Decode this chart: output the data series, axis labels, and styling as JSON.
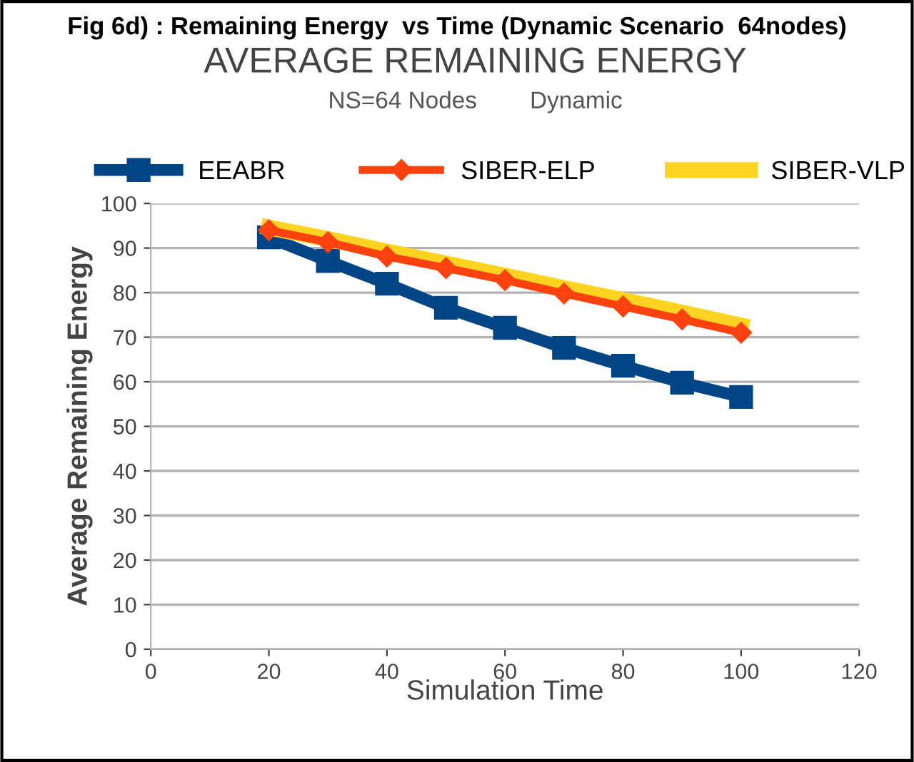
{
  "chart_data": {
    "type": "line",
    "title": "AVERAGE REMAINING ENERGY",
    "subtitle": "NS=64 Nodes        Dynamic",
    "annotations": [
      "Fig 6d) : Remaining Energy  vs Time (Dynamic Scenario  64nodes)"
    ],
    "xlabel": "Simulation Time",
    "ylabel": "Average Remaining Energy",
    "x": [
      20,
      30,
      40,
      50,
      60,
      70,
      80,
      90,
      100
    ],
    "series": [
      {
        "name": "EEABR",
        "color": "#004586",
        "marker": "square",
        "values": [
          92.4,
          87.1,
          82,
          76.6,
          72.1,
          67.6,
          63.6,
          59.8,
          56.6
        ]
      },
      {
        "name": "SIBER-ELP",
        "color": "#ff420e",
        "marker": "diamond",
        "values": [
          94,
          91.3,
          88.1,
          85.5,
          82.8,
          79.8,
          76.9,
          74,
          71
        ]
      },
      {
        "name": "SIBER-VLP",
        "color": "#ffd320",
        "marker": "none",
        "values": [
          94.6,
          92,
          89.2,
          86.5,
          83.8,
          81,
          78.3,
          75.5,
          72.6
        ]
      }
    ],
    "xlim": [
      0,
      120
    ],
    "xticks": [
      0,
      20,
      40,
      60,
      80,
      100,
      120
    ],
    "ylim": [
      0,
      100
    ],
    "yticks": [
      0,
      10,
      20,
      30,
      40,
      50,
      60,
      70,
      80,
      90,
      100
    ],
    "grid": "y",
    "legend": "top"
  }
}
